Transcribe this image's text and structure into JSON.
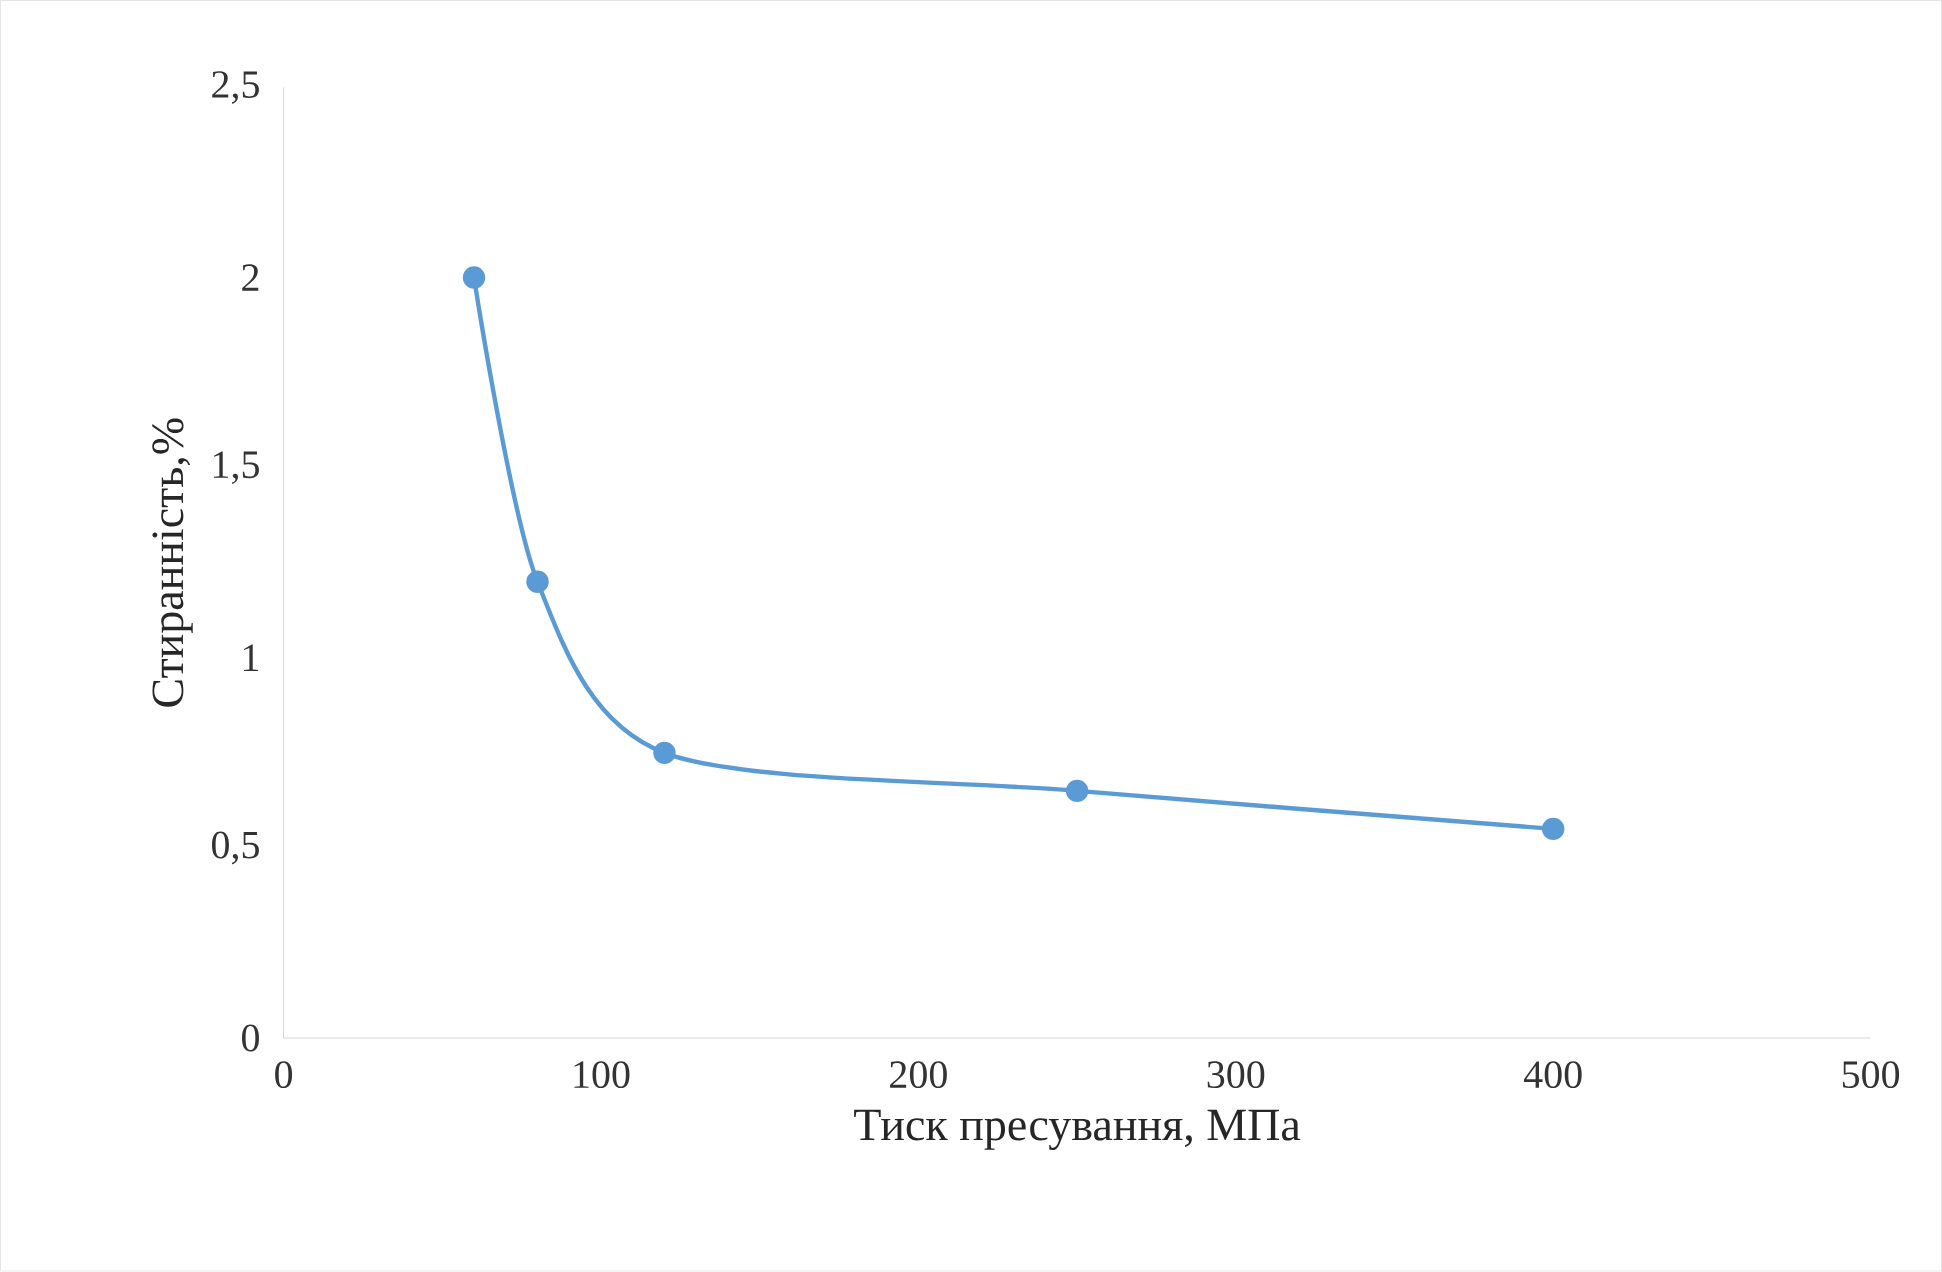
{
  "chart_data": {
    "type": "line",
    "xlabel": "Тиск пресування, МПа",
    "ylabel": "Стиранність,%",
    "x": [
      60,
      80,
      120,
      250,
      400
    ],
    "values": [
      2.0,
      1.2,
      0.75,
      0.65,
      0.55
    ],
    "color": "#5b9bd5",
    "marker": "circle",
    "line_style": "solid",
    "xlim": [
      0,
      500
    ],
    "xticks": [
      0,
      100,
      200,
      300,
      400,
      500
    ],
    "ylim": [
      0,
      2.5
    ],
    "yticks": [
      0,
      {
        "value": 0.5,
        "label": "0,5"
      },
      1,
      {
        "value": 1.5,
        "label": "1,5"
      },
      2,
      {
        "value": 2.5,
        "label": "2,5"
      }
    ]
  }
}
